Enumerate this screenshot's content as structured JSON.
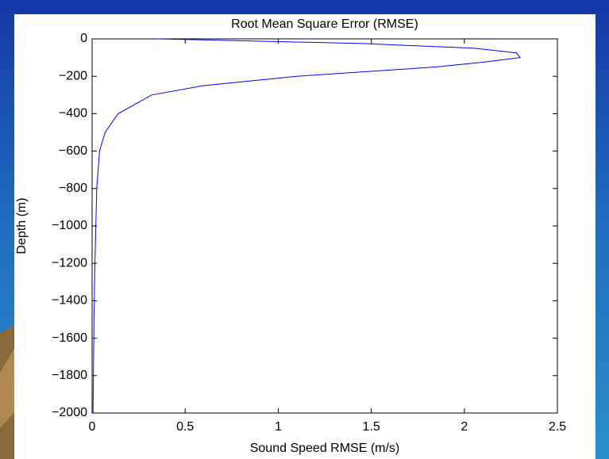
{
  "chart_data": {
    "type": "line",
    "title": "Root Mean Square Error (RMSE)",
    "x_label": "Sound Speed RMSE (m/s)",
    "y_label": "Depth (m)",
    "series": [
      {
        "color": "#0000ff",
        "x": [
          0.35,
          1.45,
          2.05,
          2.28,
          2.3,
          2.1,
          1.85,
          1.1,
          0.6,
          0.32,
          0.14,
          0.07,
          0.04,
          0.025,
          0.02,
          0.015,
          0.01,
          0.005
        ],
        "y": [
          0,
          -25,
          -50,
          -75,
          -100,
          -125,
          -150,
          -200,
          -250,
          -300,
          -400,
          -500,
          -600,
          -800,
          -1000,
          -1200,
          -1500,
          -2000
        ]
      }
    ],
    "xlim": [
      0,
      2.5
    ],
    "xticks": [
      0,
      0.5,
      1,
      1.5,
      2,
      2.5
    ],
    "ylim": [
      -2000,
      0
    ],
    "yticks": [
      {
        "value": -2000,
        "label": "−2000"
      },
      {
        "value": -1800,
        "label": "−1800"
      },
      {
        "value": -1600,
        "label": "−1600"
      },
      {
        "value": -1400,
        "label": "−1400"
      },
      {
        "value": -1200,
        "label": "−1200"
      },
      {
        "value": -1000,
        "label": "−1000"
      },
      {
        "value": -800,
        "label": "−800"
      },
      {
        "value": -600,
        "label": "−600"
      },
      {
        "value": -400,
        "label": "−400"
      },
      {
        "value": -200,
        "label": "−200"
      },
      0
    ]
  }
}
